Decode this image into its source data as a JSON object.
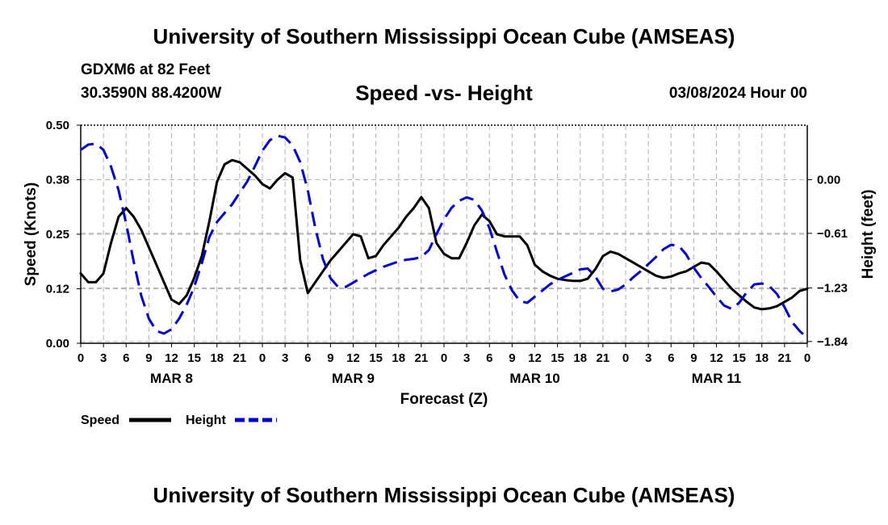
{
  "header": {
    "title": "University of Southern Mississippi Ocean Cube (AMSEAS)",
    "station": "GDXM6 at 82 Feet",
    "coords": "30.3590N  88.4200W",
    "subtitle": "Speed -vs- Height",
    "datestamp": "03/08/2024 Hour 00"
  },
  "footer": {
    "title": "University of Southern Mississippi Ocean Cube (AMSEAS)"
  },
  "chart_data": {
    "type": "line",
    "xlabel": "Forecast (Z)",
    "ylabel_left": "Speed (Knots)",
    "ylabel_right": "Height (feet)",
    "x_range_hours": [
      0,
      96
    ],
    "x_tick_step_hours": 3,
    "x_tick_labels": [
      "0",
      "3",
      "6",
      "9",
      "12",
      "15",
      "18",
      "21",
      "0",
      "3",
      "6",
      "9",
      "12",
      "15",
      "18",
      "21",
      "0",
      "3",
      "6",
      "9",
      "12",
      "15",
      "18",
      "21",
      "0",
      "3",
      "6",
      "9",
      "12",
      "15",
      "18",
      "21",
      "0"
    ],
    "day_labels": [
      {
        "label": "MAR 8",
        "hour": 12
      },
      {
        "label": "MAR 9",
        "hour": 36
      },
      {
        "label": "MAR 10",
        "hour": 60
      },
      {
        "label": "MAR 11",
        "hour": 84
      }
    ],
    "ylim_left": [
      0,
      0.5
    ],
    "yticks_left": [
      {
        "v": 0.0,
        "label": "0.00"
      },
      {
        "v": 0.125,
        "label": "0.12"
      },
      {
        "v": 0.25,
        "label": "0.25"
      },
      {
        "v": 0.375,
        "label": "0.38"
      },
      {
        "v": 0.5,
        "label": "0.50"
      }
    ],
    "ylim_right": [
      -1.86,
      0.62
    ],
    "yticks_right": [
      {
        "v": 0.0,
        "label": "0.00"
      },
      {
        "v": -0.61,
        "label": "−0.61"
      },
      {
        "v": -1.23,
        "label": "−1.23"
      },
      {
        "v": -1.84,
        "label": "−1.84"
      }
    ],
    "series": [
      {
        "name": "Speed",
        "color": "#000000",
        "style": "solid",
        "axis": "left",
        "x": [
          0,
          1,
          2,
          3,
          4,
          5,
          6,
          7,
          8,
          9,
          10,
          11,
          12,
          13,
          14,
          15,
          16,
          17,
          18,
          19,
          20,
          21,
          22,
          23,
          24,
          25,
          26,
          27,
          28,
          29,
          30,
          31,
          32,
          33,
          34,
          35,
          36,
          37,
          38,
          39,
          40,
          41,
          42,
          43,
          44,
          45,
          46,
          47,
          48,
          49,
          50,
          51,
          52,
          53,
          54,
          55,
          56,
          57,
          58,
          59,
          60,
          61,
          62,
          63,
          64,
          65,
          66,
          67,
          68,
          69,
          70,
          71,
          72,
          73,
          74,
          75,
          76,
          77,
          78,
          79,
          80,
          81,
          82,
          83,
          84,
          85,
          86,
          87,
          88,
          89,
          90,
          91,
          92,
          93,
          94,
          95,
          96
        ],
        "values": [
          0.16,
          0.14,
          0.14,
          0.16,
          0.23,
          0.29,
          0.31,
          0.29,
          0.26,
          0.22,
          0.18,
          0.14,
          0.1,
          0.09,
          0.11,
          0.15,
          0.2,
          0.28,
          0.37,
          0.41,
          0.42,
          0.415,
          0.4,
          0.385,
          0.365,
          0.355,
          0.375,
          0.39,
          0.38,
          0.19,
          0.115,
          0.14,
          0.165,
          0.19,
          0.21,
          0.23,
          0.25,
          0.245,
          0.195,
          0.2,
          0.225,
          0.245,
          0.265,
          0.29,
          0.31,
          0.335,
          0.31,
          0.23,
          0.205,
          0.195,
          0.195,
          0.23,
          0.27,
          0.295,
          0.28,
          0.25,
          0.245,
          0.245,
          0.245,
          0.225,
          0.18,
          0.165,
          0.155,
          0.148,
          0.145,
          0.143,
          0.143,
          0.148,
          0.17,
          0.2,
          0.21,
          0.205,
          0.195,
          0.185,
          0.175,
          0.165,
          0.155,
          0.15,
          0.153,
          0.16,
          0.165,
          0.175,
          0.185,
          0.182,
          0.165,
          0.145,
          0.125,
          0.11,
          0.095,
          0.082,
          0.078,
          0.08,
          0.085,
          0.095,
          0.105,
          0.12,
          0.125
        ]
      },
      {
        "name": "Height",
        "color": "#0000d0",
        "style": "dashed",
        "axis": "right",
        "x": [
          0,
          1,
          2,
          3,
          4,
          5,
          6,
          7,
          8,
          9,
          10,
          11,
          12,
          13,
          14,
          15,
          16,
          17,
          18,
          19,
          20,
          21,
          22,
          23,
          24,
          25,
          26,
          27,
          28,
          29,
          30,
          31,
          32,
          33,
          34,
          35,
          36,
          37,
          38,
          39,
          40,
          41,
          42,
          43,
          44,
          45,
          46,
          47,
          48,
          49,
          50,
          51,
          52,
          53,
          54,
          55,
          56,
          57,
          58,
          59,
          60,
          61,
          62,
          63,
          64,
          65,
          66,
          67,
          68,
          69,
          70,
          71,
          72,
          73,
          74,
          75,
          76,
          77,
          78,
          79,
          80,
          81,
          82,
          83,
          84,
          85,
          86,
          87,
          88,
          89,
          90,
          91,
          92,
          93,
          94,
          95,
          96
        ],
        "values": [
          0.34,
          0.4,
          0.41,
          0.34,
          0.15,
          -0.12,
          -0.5,
          -0.93,
          -1.32,
          -1.58,
          -1.72,
          -1.75,
          -1.7,
          -1.58,
          -1.42,
          -1.22,
          -0.95,
          -0.65,
          -0.48,
          -0.38,
          -0.28,
          -0.15,
          -0.02,
          0.15,
          0.33,
          0.45,
          0.5,
          0.48,
          0.39,
          0.2,
          -0.12,
          -0.55,
          -0.9,
          -1.12,
          -1.22,
          -1.22,
          -1.17,
          -1.12,
          -1.07,
          -1.03,
          -0.99,
          -0.96,
          -0.93,
          -0.91,
          -0.9,
          -0.88,
          -0.8,
          -0.62,
          -0.45,
          -0.32,
          -0.24,
          -0.2,
          -0.23,
          -0.35,
          -0.55,
          -0.82,
          -1.08,
          -1.26,
          -1.38,
          -1.4,
          -1.33,
          -1.26,
          -1.19,
          -1.14,
          -1.1,
          -1.06,
          -1.02,
          -1.01,
          -1.1,
          -1.24,
          -1.27,
          -1.25,
          -1.19,
          -1.11,
          -1.04,
          -0.96,
          -0.88,
          -0.79,
          -0.74,
          -0.75,
          -0.85,
          -1.0,
          -1.12,
          -1.22,
          -1.33,
          -1.43,
          -1.47,
          -1.4,
          -1.28,
          -1.19,
          -1.18,
          -1.21,
          -1.3,
          -1.45,
          -1.62,
          -1.72,
          -1.8
        ]
      }
    ],
    "legend": [
      {
        "label": "Speed",
        "color": "#000000",
        "style": "solid"
      },
      {
        "label": "Height",
        "color": "#0000d0",
        "style": "dashed"
      }
    ]
  }
}
